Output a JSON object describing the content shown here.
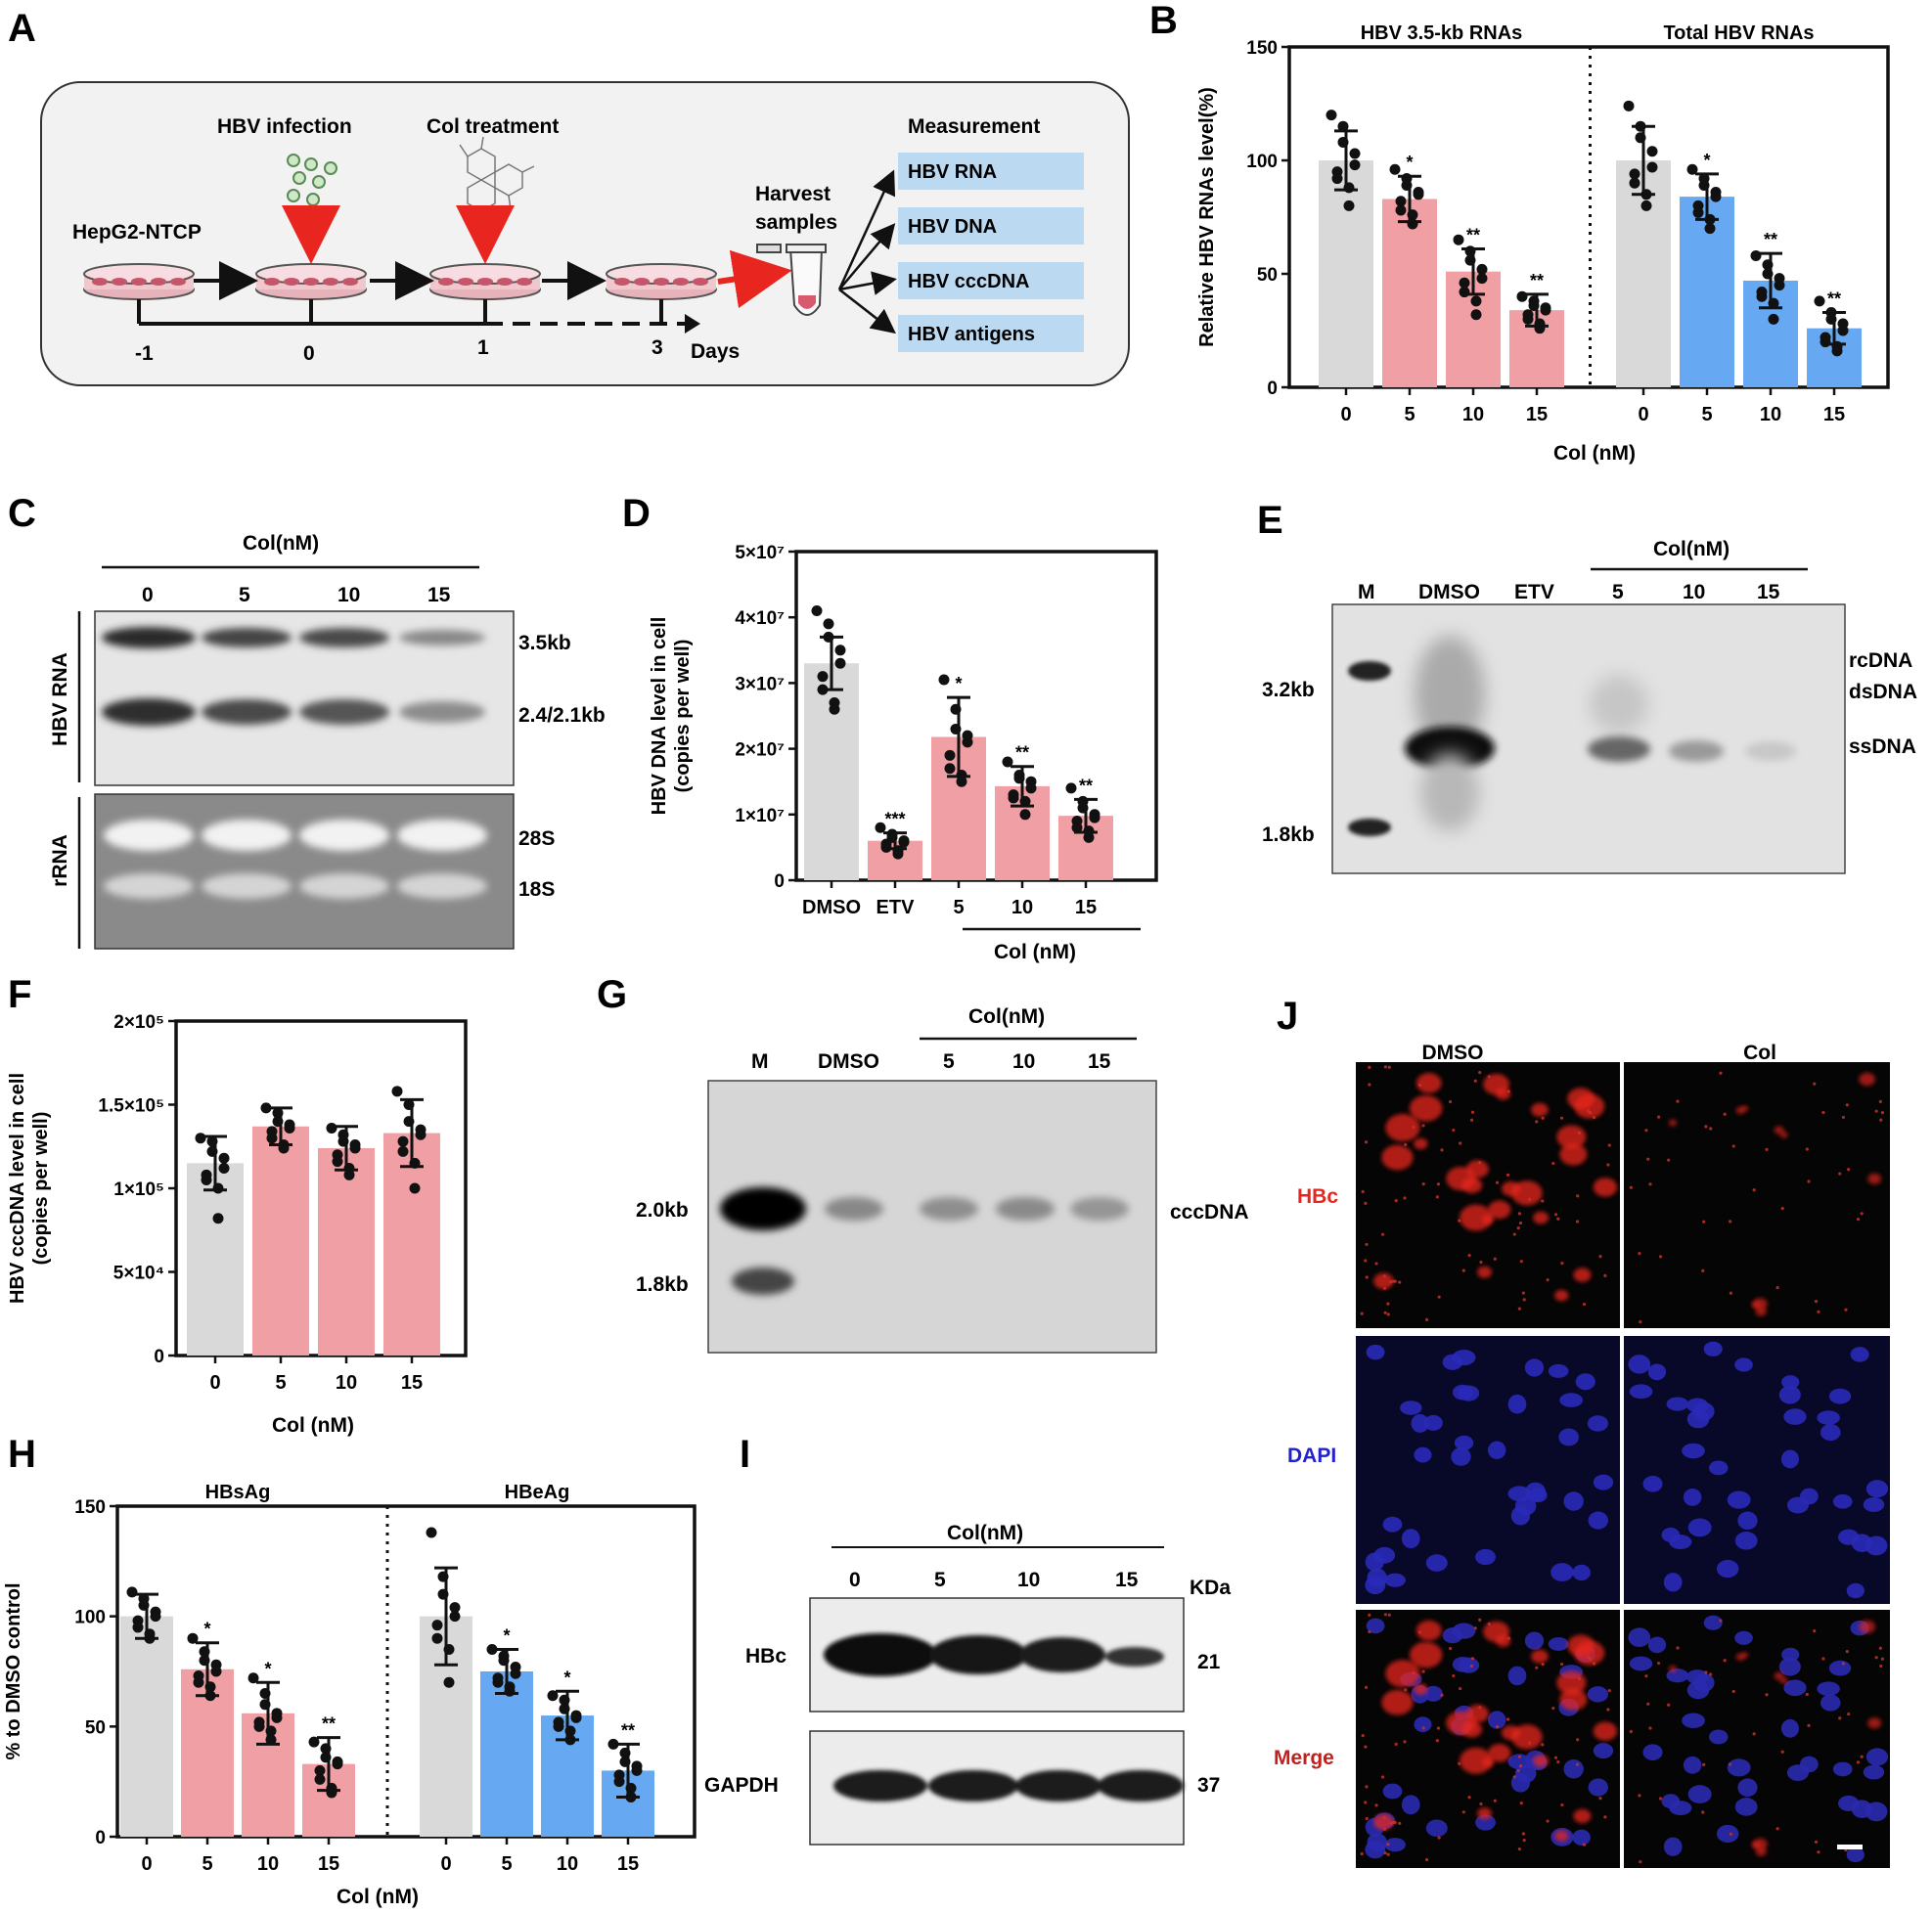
{
  "panels": {
    "A": "A",
    "B": "B",
    "C": "C",
    "D": "D",
    "E": "E",
    "F": "F",
    "G": "G",
    "H": "H",
    "I": "I",
    "J": "J"
  },
  "schematic": {
    "hbv_infection": "HBV infection",
    "col_treatment": "Col treatment",
    "cell_line": "HepG2-NTCP",
    "harvest": [
      "Harvest",
      "samples"
    ],
    "measurement_title": "Measurement",
    "measurements": [
      "HBV RNA",
      "HBV DNA",
      "HBV cccDNA",
      "HBV antigens"
    ],
    "timeline": [
      "-1",
      "0",
      "1",
      "3"
    ],
    "days": "Days"
  },
  "blots": {
    "C": {
      "header": "Col(nM)",
      "lanes": [
        "0",
        "5",
        "10",
        "15"
      ],
      "left_labels": [
        "HBV RNA",
        "rRNA"
      ],
      "right_labels": [
        "3.5kb",
        "2.4/2.1kb",
        "28S",
        "18S"
      ]
    },
    "E": {
      "header": "Col(nM)",
      "lanes": [
        "M",
        "DMSO",
        "ETV",
        "5",
        "10",
        "15"
      ],
      "left_markers": [
        "3.2kb",
        "1.8kb"
      ],
      "right_labels": [
        "rcDNA",
        "dsDNA",
        "ssDNA"
      ]
    },
    "G": {
      "header": "Col(nM)",
      "lanes": [
        "M",
        "DMSO",
        "5",
        "10",
        "15"
      ],
      "left_markers": [
        "2.0kb",
        "1.8kb"
      ],
      "right_labels": [
        "cccDNA"
      ]
    },
    "I": {
      "header": "Col(nM)",
      "lanes": [
        "0",
        "5",
        "10",
        "15"
      ],
      "kda": "KDa",
      "row_labels": [
        "HBc",
        "GAPDH"
      ],
      "row_kda": [
        "21",
        "37"
      ]
    }
  },
  "microscopy": {
    "columns": [
      "DMSO",
      "Col"
    ],
    "rows": [
      "HBc",
      "DAPI",
      "Merge"
    ]
  },
  "colors": {
    "gray": "#d9d9d9",
    "pink": "#f0a0a4",
    "blue": "#66a9f2",
    "hbc": "#e8261f",
    "dapi": "#2222cc",
    "merge": "#c0211c"
  },
  "chart_data": [
    {
      "id": "B",
      "type": "bar",
      "ylabel": "Relative HBV RNAs level(%)",
      "xlabel": "Col (nM)",
      "ylim": [
        0,
        150
      ],
      "yticks": [
        "0",
        "50",
        "100",
        "150"
      ],
      "groups": [
        {
          "title": "HBV 3.5-kb RNAs",
          "categories": [
            "0",
            "5",
            "10",
            "15"
          ],
          "values": [
            100,
            83,
            51,
            34
          ],
          "errors": [
            13,
            10,
            10,
            7
          ],
          "stars": [
            "",
            "*",
            "**",
            "**"
          ],
          "colors": [
            "gray",
            "pink",
            "pink",
            "pink"
          ],
          "points": [
            [
              120,
              115,
              108,
              103,
              98,
              95,
              92,
              88,
              80
            ],
            [
              96,
              92,
              89,
              86,
              85,
              82,
              78,
              76,
              72
            ],
            [
              65,
              60,
              56,
              52,
              48,
              46,
              42,
              38,
              32
            ],
            [
              40,
              38,
              36,
              35,
              34,
              32,
              30,
              28,
              26
            ]
          ]
        },
        {
          "title": "Total HBV RNAs",
          "categories": [
            "0",
            "5",
            "10",
            "15"
          ],
          "values": [
            100,
            84,
            47,
            26
          ],
          "errors": [
            15,
            10,
            12,
            7
          ],
          "stars": [
            "",
            "*",
            "**",
            "**"
          ],
          "colors": [
            "gray",
            "blue",
            "blue",
            "blue"
          ],
          "points": [
            [
              124,
              115,
              110,
              104,
              97,
              94,
              90,
              85,
              80
            ],
            [
              96,
              92,
              89,
              86,
              84,
              80,
              77,
              74,
              70
            ],
            [
              58,
              54,
              50,
              48,
              45,
              42,
              40,
              37,
              30
            ],
            [
              38,
              33,
              30,
              28,
              25,
              22,
              20,
              18,
              16
            ]
          ]
        }
      ]
    },
    {
      "id": "D",
      "type": "bar",
      "ylabel": [
        "HBV DNA level in cell",
        "(copies per well)"
      ],
      "xlabel": "Col  (nM)",
      "ylim": [
        0,
        50000000
      ],
      "yticks": [
        "0",
        "1×10⁷",
        "2×10⁷",
        "3×10⁷",
        "4×10⁷",
        "5×10⁷"
      ],
      "groups": [
        {
          "title": "",
          "categories": [
            "DMSO",
            "ETV",
            "5",
            "10",
            "15"
          ],
          "values": [
            33000000,
            6000000,
            21800000,
            14300000,
            9800000
          ],
          "errors": [
            4000000,
            1200000,
            6000000,
            3000000,
            2500000
          ],
          "stars": [
            "",
            "***",
            "*",
            "**",
            "**"
          ],
          "colors": [
            "gray",
            "pink",
            "pink",
            "pink",
            "pink"
          ],
          "points": [
            [
              41000000,
              39000000,
              37000000,
              35000000,
              33000000,
              31000000,
              29000000,
              27000000,
              26000000
            ],
            [
              8000000,
              7000000,
              6500000,
              6000000,
              5800000,
              5500000,
              5000000,
              4500000,
              4000000
            ],
            [
              30500000,
              26000000,
              23000000,
              22000000,
              21000000,
              19000000,
              17000000,
              16000000,
              15000000
            ],
            [
              18000000,
              16000000,
              15500000,
              15000000,
              14000000,
              13000000,
              12500000,
              12000000,
              10000000
            ],
            [
              14000000,
              12000000,
              11000000,
              10000000,
              9500000,
              9000000,
              8000000,
              7500000,
              6500000
            ]
          ]
        }
      ]
    },
    {
      "id": "F",
      "type": "bar",
      "ylabel": [
        "HBV cccDNA level in cell",
        "(copies per well)"
      ],
      "xlabel": "Col (nM)",
      "ylim": [
        0,
        200000
      ],
      "yticks": [
        "0",
        "5×10⁴",
        "1×10⁵",
        "1.5×10⁵",
        "2×10⁵"
      ],
      "groups": [
        {
          "title": "",
          "categories": [
            "0",
            "5",
            "10",
            "15"
          ],
          "values": [
            115000,
            137000,
            124000,
            133000
          ],
          "errors": [
            16000,
            11000,
            13000,
            20000
          ],
          "stars": [
            "",
            "",
            "",
            ""
          ],
          "colors": [
            "gray",
            "pink",
            "pink",
            "pink"
          ],
          "points": [
            [
              130000,
              128000,
              122000,
              118000,
              112000,
              108000,
              105000,
              100000,
              82000
            ],
            [
              148000,
              145000,
              140000,
              138000,
              136000,
              134000,
              130000,
              126000,
              124000
            ],
            [
              136000,
              132000,
              128000,
              126000,
              124000,
              120000,
              116000,
              112000,
              108000
            ],
            [
              158000,
              150000,
              140000,
              135000,
              132000,
              128000,
              122000,
              115000,
              100000
            ]
          ]
        }
      ]
    },
    {
      "id": "H",
      "type": "bar",
      "ylabel": "% to DMSO control",
      "xlabel": "Col (nM)",
      "ylim": [
        0,
        150
      ],
      "yticks": [
        "0",
        "50",
        "100",
        "150"
      ],
      "groups": [
        {
          "title": "HBsAg",
          "categories": [
            "0",
            "5",
            "10",
            "15"
          ],
          "values": [
            100,
            76,
            56,
            33
          ],
          "errors": [
            10,
            12,
            14,
            12
          ],
          "stars": [
            "",
            "*",
            "*",
            "**"
          ],
          "colors": [
            "gray",
            "pink",
            "pink",
            "pink"
          ],
          "points": [
            [
              111,
              108,
              105,
              102,
              100,
              98,
              95,
              92,
              90
            ],
            [
              90,
              84,
              80,
              78,
              75,
              73,
              70,
              68,
              64
            ],
            [
              72,
              65,
              60,
              56,
              54,
              52,
              50,
              48,
              44
            ],
            [
              43,
              40,
              36,
              34,
              33,
              30,
              26,
              22,
              20
            ]
          ]
        },
        {
          "title": "HBeAg",
          "categories": [
            "0",
            "5",
            "10",
            "15"
          ],
          "values": [
            100,
            75,
            55,
            30
          ],
          "errors": [
            22,
            10,
            11,
            12
          ],
          "stars": [
            "",
            "*",
            "*",
            "**"
          ],
          "colors": [
            "gray",
            "blue",
            "blue",
            "blue"
          ],
          "points": [
            [
              138,
              118,
              110,
              104,
              100,
              96,
              90,
              85,
              70
            ],
            [
              85,
              82,
              80,
              77,
              74,
              72,
              70,
              68,
              66
            ],
            [
              64,
              62,
              58,
              55,
              54,
              52,
              50,
              48,
              44
            ],
            [
              42,
              38,
              34,
              32,
              30,
              28,
              25,
              22,
              18
            ]
          ]
        }
      ]
    }
  ]
}
